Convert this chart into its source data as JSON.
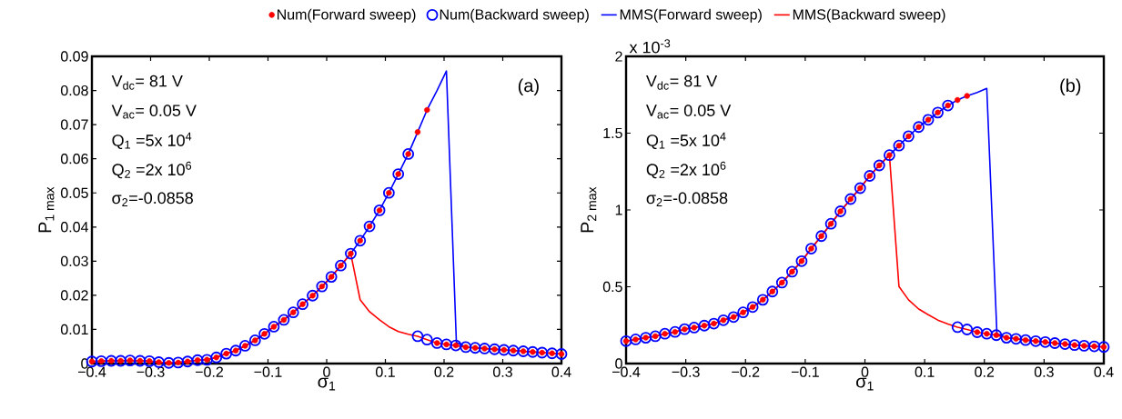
{
  "chart_data": [
    {
      "type": "scatter",
      "xlabel": "σ$_{1}$",
      "ylabel": "P$_{1 max}$",
      "legend": "top",
      "xlim": [
        -0.4,
        0.4
      ],
      "ylim": [
        0,
        0.09
      ],
      "xticks": [
        {
          "value": -0.4,
          "label": "−0.4"
        },
        {
          "value": -0.3,
          "label": "−0.3"
        },
        {
          "value": -0.2,
          "label": "−0.2"
        },
        {
          "value": -0.1,
          "label": "−0.1"
        },
        0,
        0.1,
        0.2,
        0.3,
        0.4
      ],
      "yticks": [
        0,
        0.01,
        0.02,
        0.03,
        0.04,
        0.05,
        0.06,
        0.07,
        0.08,
        0.09
      ],
      "annotations": [
        "V$_{dc}$= 81 V",
        "V$_{ac}$= 0.05 V",
        "Q$_{1}$ =5x 10$^{4}$",
        "Q$_{2}$ =2x 10$^{6}$",
        "σ$_{2}$=-0.0858",
        "(a)"
      ],
      "series": [
        {
          "name": "Num(Forward sweep)",
          "color": "#ff0000",
          "marker": "circle",
          "x": [
            -0.4,
            -0.384,
            -0.367,
            -0.351,
            -0.335,
            -0.318,
            -0.302,
            -0.286,
            -0.269,
            -0.253,
            -0.237,
            -0.22,
            -0.204,
            -0.188,
            -0.171,
            -0.155,
            -0.139,
            -0.122,
            -0.106,
            -0.09,
            -0.073,
            -0.057,
            -0.041,
            -0.024,
            -0.008,
            0.008,
            0.024,
            0.041,
            0.057,
            0.073,
            0.09,
            0.106,
            0.122,
            0.139,
            0.155,
            0.171,
            0.188,
            0.204,
            0.22,
            0.237,
            0.253,
            0.269,
            0.286,
            0.302,
            0.318,
            0.335,
            0.351,
            0.367,
            0.384,
            0.4
          ],
          "values": [
            0.0006,
            0.0007,
            0.0008,
            0.0008,
            0.0009,
            0.0008,
            0.0007,
            0.0004,
            0.0002,
            0.0003,
            0.0006,
            0.001,
            0.0011,
            0.0018,
            0.0029,
            0.0038,
            0.0052,
            0.0068,
            0.0087,
            0.0108,
            0.0128,
            0.015,
            0.0174,
            0.0199,
            0.0226,
            0.0254,
            0.0287,
            0.0322,
            0.036,
            0.0402,
            0.0449,
            0.05,
            0.0555,
            0.0614,
            0.0678,
            0.0743,
            0.006,
            0.0056,
            0.0053,
            0.0048,
            0.0046,
            0.0044,
            0.0042,
            0.004,
            0.0038,
            0.0036,
            0.0034,
            0.0032,
            0.003,
            0.0028
          ]
        },
        {
          "name": "Num(Backward sweep)",
          "color": "#0000ff",
          "marker": "circle",
          "x": [
            -0.4,
            -0.384,
            -0.367,
            -0.351,
            -0.335,
            -0.318,
            -0.302,
            -0.286,
            -0.269,
            -0.253,
            -0.237,
            -0.22,
            -0.204,
            -0.188,
            -0.171,
            -0.155,
            -0.139,
            -0.122,
            -0.106,
            -0.09,
            -0.073,
            -0.057,
            -0.041,
            -0.024,
            -0.008,
            0.008,
            0.024,
            0.041,
            0.057,
            0.073,
            0.09,
            0.106,
            0.122,
            0.139,
            0.155,
            0.171,
            0.188,
            0.204,
            0.22,
            0.237,
            0.253,
            0.269,
            0.286,
            0.302,
            0.318,
            0.335,
            0.351,
            0.367,
            0.384,
            0.4
          ],
          "values": [
            0.0006,
            0.0007,
            0.0008,
            0.0008,
            0.0009,
            0.0008,
            0.0007,
            0.0004,
            0.0002,
            0.0003,
            0.0006,
            0.001,
            0.0011,
            0.0018,
            0.0029,
            0.0038,
            0.0052,
            0.0068,
            0.0087,
            0.0108,
            0.0128,
            0.015,
            0.0174,
            0.0199,
            0.0226,
            0.0254,
            0.0287,
            0.0322,
            0.036,
            0.0402,
            0.0449,
            0.05,
            0.0555,
            0.0614,
            0.008,
            0.007,
            0.006,
            0.0056,
            0.0053,
            0.0048,
            0.0046,
            0.0044,
            0.0042,
            0.004,
            0.0038,
            0.0036,
            0.0034,
            0.0032,
            0.003,
            0.0028
          ]
        },
        {
          "type": "line",
          "name": "MMS(Forward sweep)",
          "color": "#0000ff",
          "marker": "none",
          "line_style": "solid",
          "x": [
            -0.4,
            -0.384,
            -0.367,
            -0.351,
            -0.335,
            -0.318,
            -0.302,
            -0.286,
            -0.269,
            -0.253,
            -0.237,
            -0.22,
            -0.204,
            -0.188,
            -0.171,
            -0.155,
            -0.139,
            -0.122,
            -0.106,
            -0.09,
            -0.073,
            -0.057,
            -0.041,
            -0.024,
            -0.008,
            0.008,
            0.024,
            0.041,
            0.057,
            0.073,
            0.09,
            0.106,
            0.122,
            0.139,
            0.155,
            0.171,
            0.188,
            0.204,
            0.221,
            0.237,
            0.253,
            0.269,
            0.286,
            0.302,
            0.318,
            0.335,
            0.351,
            0.367,
            0.384,
            0.4
          ],
          "values": [
            0.0006,
            0.0007,
            0.0008,
            0.0008,
            0.0009,
            0.0008,
            0.0007,
            0.0004,
            0.0002,
            0.0003,
            0.0006,
            0.001,
            0.0011,
            0.0018,
            0.0029,
            0.0038,
            0.0052,
            0.0068,
            0.0087,
            0.0108,
            0.0128,
            0.015,
            0.0174,
            0.0199,
            0.0226,
            0.0254,
            0.0287,
            0.0322,
            0.036,
            0.0402,
            0.0449,
            0.05,
            0.0555,
            0.0614,
            0.0678,
            0.0743,
            0.08,
            0.0857,
            0.0062,
            0.0048,
            0.0046,
            0.0044,
            0.0042,
            0.004,
            0.0038,
            0.0036,
            0.0034,
            0.0032,
            0.003,
            0.0028
          ]
        },
        {
          "type": "line",
          "name": "MMS(Backward sweep)",
          "color": "#ff0000",
          "marker": "none",
          "line_style": "solid",
          "x": [
            -0.4,
            -0.384,
            -0.367,
            -0.351,
            -0.335,
            -0.318,
            -0.302,
            -0.286,
            -0.269,
            -0.253,
            -0.237,
            -0.22,
            -0.204,
            -0.188,
            -0.171,
            -0.155,
            -0.139,
            -0.122,
            -0.106,
            -0.09,
            -0.073,
            -0.057,
            -0.041,
            -0.024,
            -0.008,
            0.008,
            0.024,
            0.041,
            0.057,
            0.073,
            0.09,
            0.106,
            0.122,
            0.139,
            0.155,
            0.171,
            0.188,
            0.204,
            0.22,
            0.237,
            0.253,
            0.269,
            0.286,
            0.302,
            0.318,
            0.335,
            0.351,
            0.367,
            0.384,
            0.4
          ],
          "values": [
            0.0006,
            0.0007,
            0.0008,
            0.0008,
            0.0009,
            0.0008,
            0.0007,
            0.0004,
            0.0002,
            0.0003,
            0.0006,
            0.001,
            0.0011,
            0.0018,
            0.0029,
            0.0038,
            0.0052,
            0.0068,
            0.0087,
            0.0108,
            0.0128,
            0.015,
            0.0174,
            0.0199,
            0.0226,
            0.0254,
            0.0287,
            0.0322,
            0.0187,
            0.0152,
            0.0128,
            0.0108,
            0.0094,
            0.0086,
            0.008,
            0.007,
            0.006,
            0.0056,
            0.0053,
            0.0048,
            0.0046,
            0.0044,
            0.0042,
            0.004,
            0.0038,
            0.0036,
            0.0034,
            0.0032,
            0.003,
            0.0028
          ]
        }
      ]
    },
    {
      "type": "scatter",
      "xlabel": "σ$_{1}$",
      "ylabel": "P$_{2 max}$",
      "xlim": [
        -0.4,
        0.4
      ],
      "ylim": [
        0,
        2
      ],
      "xticks": [
        {
          "value": -0.4,
          "label": "−0.4"
        },
        {
          "value": -0.3,
          "label": "−0.3"
        },
        {
          "value": -0.2,
          "label": "−0.2"
        },
        {
          "value": -0.1,
          "label": "−0.1"
        },
        0,
        0.1,
        0.2,
        0.3,
        0.4
      ],
      "yticks": [
        0,
        0.5,
        1,
        1.5,
        2
      ],
      "annotations": [
        "V$_{dc}$= 81 V",
        "V$_{ac}$= 0.05 V",
        "Q$_{1}$ =5x 10$^{4}$",
        "Q$_{2}$ =2x 10$^{6}$",
        "σ$_{2}$=-0.0858",
        "(b)",
        "x 10$^{-3}$"
      ],
      "series": [
        {
          "color": "#ff0000",
          "marker": "circle",
          "x": [
            -0.4,
            -0.384,
            -0.367,
            -0.351,
            -0.335,
            -0.318,
            -0.302,
            -0.286,
            -0.269,
            -0.253,
            -0.237,
            -0.22,
            -0.204,
            -0.188,
            -0.171,
            -0.155,
            -0.139,
            -0.122,
            -0.106,
            -0.09,
            -0.073,
            -0.057,
            -0.041,
            -0.024,
            -0.008,
            0.008,
            0.024,
            0.041,
            0.057,
            0.073,
            0.09,
            0.106,
            0.122,
            0.139,
            0.155,
            0.171,
            0.188,
            0.204,
            0.22,
            0.237,
            0.253,
            0.269,
            0.286,
            0.302,
            0.318,
            0.335,
            0.351,
            0.367,
            0.384,
            0.4
          ],
          "values": [
            0.146,
            0.157,
            0.168,
            0.178,
            0.194,
            0.206,
            0.224,
            0.234,
            0.247,
            0.26,
            0.282,
            0.303,
            0.333,
            0.368,
            0.415,
            0.469,
            0.527,
            0.598,
            0.667,
            0.748,
            0.83,
            0.91,
            0.991,
            1.071,
            1.142,
            1.222,
            1.29,
            1.357,
            1.419,
            1.48,
            1.54,
            1.587,
            1.634,
            1.68,
            1.716,
            1.742,
            0.204,
            0.194,
            0.185,
            0.168,
            0.161,
            0.153,
            0.146,
            0.14,
            0.133,
            0.127,
            0.12,
            0.116,
            0.112,
            0.108
          ]
        },
        {
          "color": "#0000ff",
          "marker": "circle",
          "x": [
            -0.4,
            -0.384,
            -0.367,
            -0.351,
            -0.335,
            -0.318,
            -0.302,
            -0.286,
            -0.269,
            -0.253,
            -0.237,
            -0.22,
            -0.204,
            -0.188,
            -0.171,
            -0.155,
            -0.139,
            -0.122,
            -0.106,
            -0.09,
            -0.073,
            -0.057,
            -0.041,
            -0.024,
            -0.008,
            0.008,
            0.024,
            0.041,
            0.057,
            0.073,
            0.09,
            0.106,
            0.122,
            0.139,
            0.155,
            0.171,
            0.188,
            0.204,
            0.22,
            0.237,
            0.253,
            0.269,
            0.286,
            0.302,
            0.318,
            0.335,
            0.351,
            0.367,
            0.384,
            0.4
          ],
          "values": [
            0.146,
            0.157,
            0.168,
            0.178,
            0.194,
            0.206,
            0.224,
            0.234,
            0.247,
            0.26,
            0.282,
            0.303,
            0.333,
            0.368,
            0.415,
            0.469,
            0.527,
            0.598,
            0.667,
            0.748,
            0.83,
            0.91,
            0.991,
            1.071,
            1.142,
            1.222,
            1.29,
            1.357,
            1.419,
            1.48,
            1.54,
            1.587,
            1.634,
            1.68,
            0.237,
            0.222,
            0.204,
            0.194,
            0.185,
            0.168,
            0.161,
            0.153,
            0.146,
            0.14,
            0.133,
            0.127,
            0.12,
            0.116,
            0.112,
            0.108
          ]
        },
        {
          "type": "line",
          "color": "#0000ff",
          "marker": "none",
          "line_style": "solid",
          "x": [
            -0.4,
            -0.384,
            -0.367,
            -0.351,
            -0.335,
            -0.318,
            -0.302,
            -0.286,
            -0.269,
            -0.253,
            -0.237,
            -0.22,
            -0.204,
            -0.188,
            -0.171,
            -0.155,
            -0.139,
            -0.122,
            -0.106,
            -0.09,
            -0.073,
            -0.057,
            -0.041,
            -0.024,
            -0.008,
            0.008,
            0.024,
            0.041,
            0.057,
            0.073,
            0.09,
            0.106,
            0.122,
            0.139,
            0.155,
            0.171,
            0.188,
            0.204,
            0.221,
            0.237,
            0.253,
            0.269,
            0.286,
            0.302,
            0.318,
            0.335,
            0.351,
            0.367,
            0.384,
            0.4
          ],
          "values": [
            0.146,
            0.157,
            0.168,
            0.178,
            0.194,
            0.206,
            0.224,
            0.234,
            0.247,
            0.26,
            0.282,
            0.303,
            0.333,
            0.368,
            0.415,
            0.469,
            0.527,
            0.598,
            0.667,
            0.748,
            0.83,
            0.91,
            0.991,
            1.071,
            1.142,
            1.222,
            1.29,
            1.357,
            1.419,
            1.48,
            1.54,
            1.587,
            1.634,
            1.68,
            1.716,
            1.742,
            1.765,
            1.791,
            0.195,
            0.168,
            0.161,
            0.153,
            0.146,
            0.14,
            0.133,
            0.127,
            0.12,
            0.116,
            0.112,
            0.108
          ]
        },
        {
          "type": "line",
          "color": "#ff0000",
          "marker": "none",
          "line_style": "solid",
          "x": [
            -0.4,
            -0.384,
            -0.367,
            -0.351,
            -0.335,
            -0.318,
            -0.302,
            -0.286,
            -0.269,
            -0.253,
            -0.237,
            -0.22,
            -0.204,
            -0.188,
            -0.171,
            -0.155,
            -0.139,
            -0.122,
            -0.106,
            -0.09,
            -0.073,
            -0.057,
            -0.041,
            -0.024,
            -0.008,
            0.008,
            0.024,
            0.041,
            0.057,
            0.073,
            0.09,
            0.106,
            0.122,
            0.139,
            0.155,
            0.171,
            0.188,
            0.204,
            0.22,
            0.237,
            0.253,
            0.269,
            0.286,
            0.302,
            0.318,
            0.335,
            0.351,
            0.367,
            0.384,
            0.4
          ],
          "values": [
            0.146,
            0.157,
            0.168,
            0.178,
            0.194,
            0.206,
            0.224,
            0.234,
            0.247,
            0.26,
            0.282,
            0.303,
            0.333,
            0.368,
            0.415,
            0.469,
            0.527,
            0.598,
            0.667,
            0.748,
            0.83,
            0.91,
            0.991,
            1.071,
            1.142,
            1.222,
            1.29,
            1.357,
            0.501,
            0.415,
            0.355,
            0.318,
            0.283,
            0.258,
            0.237,
            0.222,
            0.204,
            0.194,
            0.185,
            0.168,
            0.161,
            0.153,
            0.146,
            0.14,
            0.133,
            0.127,
            0.12,
            0.116,
            0.112,
            0.108
          ]
        }
      ]
    }
  ]
}
